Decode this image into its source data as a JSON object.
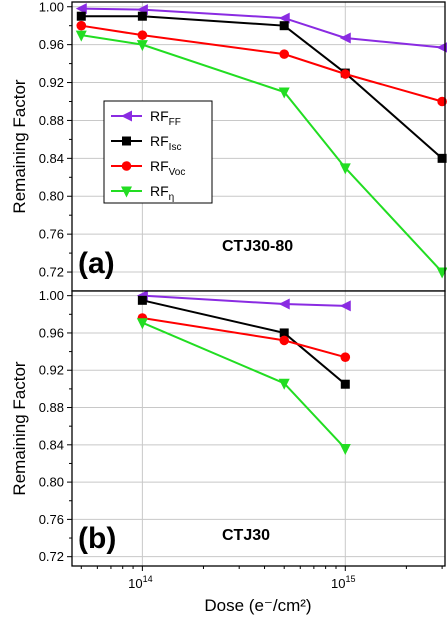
{
  "chart_data": [
    {
      "type": "line",
      "panel_label": "(a)",
      "sample": "CTJ30-80",
      "xlabel": "Dose (e⁻/cm²)",
      "ylabel": "Remaining Factor",
      "xscale": "log",
      "xlim": [
        45000000000000,
        3100000000000000
      ],
      "ylim": [
        0.7,
        1.005
      ],
      "x_ticks": [
        100000000000000,
        1000000000000000
      ],
      "x_tick_labels": [
        "10",
        "14",
        "10",
        "15"
      ],
      "y_ticks": [
        0.72,
        0.76,
        0.8,
        0.84,
        0.88,
        0.92,
        0.96,
        1.0
      ],
      "y_tick_labels": [
        "0.72",
        "0.76",
        "0.80",
        "0.84",
        "0.88",
        "0.92",
        "0.96",
        "1.00"
      ],
      "grid": true,
      "legend_position": "left-center",
      "x": [
        50000000000000,
        100000000000000,
        500000000000000,
        1000000000000000,
        3000000000000000
      ],
      "series": [
        {
          "name": "RF",
          "sub": "FF",
          "marker": "tri-left",
          "color": "#8a2be2",
          "values": [
            0.998,
            0.997,
            0.988,
            0.967,
            0.957
          ]
        },
        {
          "name": "RF",
          "sub": "Isc",
          "marker": "square",
          "color": "#000000",
          "values": [
            0.99,
            0.99,
            0.98,
            0.93,
            0.84
          ]
        },
        {
          "name": "RF",
          "sub": "Voc",
          "marker": "circle",
          "color": "#ff0000",
          "values": [
            0.98,
            0.97,
            0.95,
            0.929,
            0.9
          ]
        },
        {
          "name": "RF",
          "sub": "η",
          "marker": "tri-down",
          "color": "#22dd22",
          "values": [
            0.97,
            0.96,
            0.91,
            0.83,
            0.72
          ]
        }
      ]
    },
    {
      "type": "line",
      "panel_label": "(b)",
      "sample": "CTJ30",
      "xlabel": "Dose (e⁻/cm²)",
      "ylabel": "Remaining Factor",
      "xscale": "log",
      "xlim": [
        45000000000000,
        3100000000000000
      ],
      "ylim": [
        0.71,
        1.005
      ],
      "x_ticks": [
        100000000000000,
        1000000000000000
      ],
      "x_tick_labels": [
        "10",
        "14",
        "10",
        "15"
      ],
      "y_ticks": [
        0.72,
        0.76,
        0.8,
        0.84,
        0.88,
        0.92,
        0.96,
        1.0
      ],
      "y_tick_labels": [
        "0.72",
        "0.76",
        "0.80",
        "0.84",
        "0.88",
        "0.92",
        "0.96",
        "1.00"
      ],
      "grid": true,
      "x": [
        100000000000000,
        500000000000000,
        1000000000000000
      ],
      "series": [
        {
          "name": "RF",
          "sub": "FF",
          "marker": "tri-left",
          "color": "#8a2be2",
          "values": [
            1.0,
            0.991,
            0.989
          ]
        },
        {
          "name": "RF",
          "sub": "Isc",
          "marker": "square",
          "color": "#000000",
          "values": [
            0.995,
            0.96,
            0.905
          ]
        },
        {
          "name": "RF",
          "sub": "Voc",
          "marker": "circle",
          "color": "#ff0000",
          "values": [
            0.976,
            0.952,
            0.934
          ]
        },
        {
          "name": "RF",
          "sub": "η",
          "marker": "tri-down",
          "color": "#22dd22",
          "values": [
            0.971,
            0.906,
            0.836
          ]
        }
      ]
    }
  ]
}
